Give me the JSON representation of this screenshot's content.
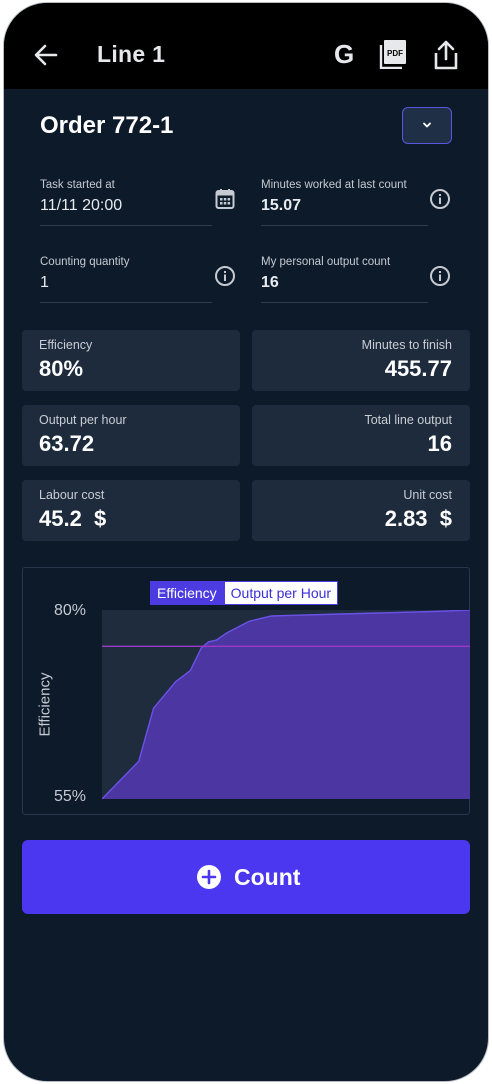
{
  "header": {
    "title": "Line 1",
    "g_label": "G",
    "pdf_label": "PDF"
  },
  "order": {
    "title": "Order 772-1"
  },
  "fields": {
    "task_started": {
      "label": "Task started at",
      "value": "11/11 20:00"
    },
    "minutes_worked": {
      "label": "Minutes worked at last count",
      "value": "15.07"
    },
    "counting_quantity": {
      "label": "Counting quantity",
      "value": "1"
    },
    "personal_output": {
      "label": "My personal output count",
      "value": "16"
    }
  },
  "cards": {
    "efficiency": {
      "label": "Efficiency",
      "value": "80%"
    },
    "minutes_to_finish": {
      "label": "Minutes to finish",
      "value": "455.77"
    },
    "output_per_hour": {
      "label": "Output per hour",
      "value": "63.72"
    },
    "total_line_output": {
      "label": "Total line output",
      "value": "16"
    },
    "labour_cost": {
      "label": "Labour cost",
      "value": "45.2  $"
    },
    "unit_cost": {
      "label": "Unit cost",
      "value": "2.83  $"
    }
  },
  "chart_data": {
    "type": "area",
    "legend": [
      "Efficiency",
      "Output per Hour"
    ],
    "active_series": "Efficiency",
    "ylabel": "Efficiency",
    "y_tick_labels": [
      "80%",
      "55%"
    ],
    "ylim": [
      55,
      80
    ],
    "target": 75.2,
    "series": [
      {
        "name": "Efficiency",
        "x": [
          0,
          10,
          14,
          20,
          24,
          27,
          29,
          31,
          34,
          40,
          46,
          52,
          60,
          75,
          90,
          100
        ],
        "values": [
          55,
          60,
          67,
          70.5,
          72,
          75,
          75.8,
          76,
          77,
          78.5,
          79.2,
          79.3,
          79.4,
          79.6,
          79.8,
          80
        ]
      }
    ]
  },
  "count_button": {
    "label": "Count"
  },
  "colors": {
    "background": "#0c1a2a",
    "card": "#1d2b3c",
    "accent": "#4b37ef",
    "area_fill": "#4f37a8",
    "target_line": "#9b38c8"
  }
}
